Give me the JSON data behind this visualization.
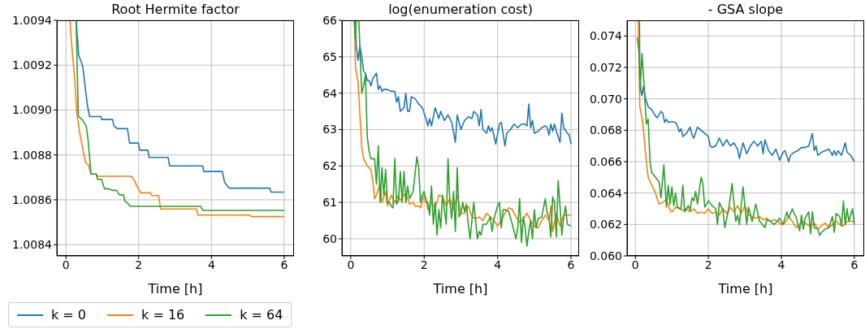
{
  "chart_data": [
    {
      "type": "line",
      "title": "Root Hermite factor",
      "xlabel": "Time [h]",
      "xlim": [
        -0.25,
        6.27
      ],
      "xticks": [
        0,
        2,
        4,
        6
      ],
      "ylim": [
        1.00835,
        1.0094
      ],
      "yticks": [
        {
          "value": 1.0084,
          "label": "1.0084"
        },
        {
          "value": 1.0086,
          "label": "1.0086"
        },
        {
          "value": 1.0088,
          "label": "1.0088"
        },
        {
          "value": 1.009,
          "label": "1.0090"
        },
        {
          "value": 1.0092,
          "label": "1.0092"
        },
        {
          "value": 1.0094,
          "label": "1.0094"
        }
      ],
      "grid": true,
      "legend": "bottom left",
      "series": [
        {
          "name": "k = 0",
          "color": "#1f77b4",
          "x": [
            0.28,
            0.35,
            0.46,
            0.59,
            0.65,
            0.96,
            0.98,
            1.28,
            1.32,
            1.41,
            1.69,
            1.75,
            1.99,
            2.03,
            2.25,
            2.29,
            2.81,
            2.85,
            3.76,
            3.79,
            4.3,
            4.36,
            4.49,
            5.6,
            5.64,
            6.0
          ],
          "values": [
            1.0094,
            1.009244,
            1.009196,
            1.009021,
            1.008971,
            1.008971,
            1.008958,
            1.008958,
            1.008929,
            1.008917,
            1.008917,
            1.008853,
            1.008853,
            1.008821,
            1.008821,
            1.008789,
            1.008789,
            1.008751,
            1.008751,
            1.008726,
            1.008726,
            1.008678,
            1.008652,
            1.008652,
            1.008634,
            1.008634
          ]
        },
        {
          "name": "k = 16",
          "color": "#ff7f0e",
          "x": [
            0.11,
            0.16,
            0.24,
            0.3,
            0.39,
            0.54,
            0.61,
            0.69,
            0.83,
            0.87,
            1.8,
            1.88,
            1.95,
            2.05,
            2.32,
            2.36,
            2.55,
            2.6,
            3.59,
            3.63,
            5.04,
            5.1,
            6.0
          ],
          "values": [
            1.0094,
            1.009286,
            1.009142,
            1.008985,
            1.008889,
            1.008765,
            1.008757,
            1.008715,
            1.008715,
            1.008705,
            1.008705,
            1.008687,
            1.008661,
            1.008631,
            1.008631,
            1.008619,
            1.008619,
            1.008559,
            1.008559,
            1.008532,
            1.008532,
            1.008525,
            1.008525
          ]
        },
        {
          "name": "k = 64",
          "color": "#2ca02c",
          "x": [
            0.28,
            0.34,
            0.46,
            0.56,
            0.61,
            0.69,
            0.83,
            0.87,
            0.98,
            1.06,
            1.17,
            1.28,
            1.39,
            1.47,
            1.58,
            1.62,
            1.69,
            1.77,
            3.7,
            3.76,
            6.0
          ],
          "values": [
            1.0094,
            1.008973,
            1.008955,
            1.008928,
            1.008865,
            1.008715,
            1.008715,
            1.008691,
            1.008691,
            1.008649,
            1.008649,
            1.008642,
            1.008642,
            1.008622,
            1.008622,
            1.008595,
            1.008586,
            1.008571,
            1.008571,
            1.008553,
            1.008553
          ]
        }
      ]
    },
    {
      "type": "line",
      "title": "log(enumeration cost)",
      "xlabel": "Time [h]",
      "xlim": [
        -0.24,
        6.22
      ],
      "xticks": [
        0,
        2,
        4,
        6
      ],
      "ylim": [
        59.53,
        66
      ],
      "yticks": [
        60,
        61,
        62,
        63,
        64,
        65,
        66
      ],
      "grid": true,
      "series": [
        {
          "color": "#1f77b4",
          "x": [
            0.12,
            0.15,
            0.2,
            0.25,
            0.3,
            0.35,
            0.4,
            0.45,
            0.5,
            0.55,
            0.6,
            0.7,
            0.75,
            0.8,
            0.85,
            0.9,
            1.0,
            1.1,
            1.2,
            1.25,
            1.3,
            1.35,
            1.45,
            1.5,
            1.55,
            1.6,
            1.65,
            1.75,
            1.85,
            1.95,
            2.05,
            2.1,
            2.15,
            2.2,
            2.3,
            2.4,
            2.45,
            2.55,
            2.65,
            2.75,
            2.85,
            2.9,
            3.0,
            3.1,
            3.2,
            3.3,
            3.35,
            3.45,
            3.5,
            3.55,
            3.6,
            3.7,
            3.75,
            3.8,
            3.85,
            3.95,
            4.05,
            4.1,
            4.2,
            4.25,
            4.35,
            4.45,
            4.55,
            4.65,
            4.75,
            4.8,
            4.85,
            4.9,
            4.95,
            5.0,
            5.1,
            5.2,
            5.3,
            5.35,
            5.4,
            5.45,
            5.5,
            5.55,
            5.6,
            5.7,
            5.75,
            5.8,
            5.9,
            5.95,
            6.0
          ],
          "values": [
            66.0,
            65.3,
            64.9,
            65.3,
            65.0,
            64.6,
            64.55,
            64.35,
            64.35,
            64.2,
            64.4,
            64.55,
            64.1,
            64.2,
            64.05,
            64.1,
            64.1,
            64.05,
            64.05,
            63.75,
            63.9,
            63.5,
            63.6,
            64.0,
            63.5,
            63.5,
            63.9,
            63.85,
            63.7,
            63.6,
            63.3,
            63.1,
            63.3,
            63.1,
            63.6,
            63.3,
            63.5,
            63.25,
            63.4,
            63.2,
            62.65,
            63.4,
            63.0,
            63.25,
            63.35,
            63.3,
            63.5,
            63.4,
            63.1,
            63.55,
            63.0,
            62.9,
            63.1,
            62.95,
            63.05,
            62.6,
            63.15,
            63.2,
            62.55,
            62.9,
            63.0,
            63.15,
            63.05,
            63.15,
            63.15,
            63.1,
            63.7,
            63.05,
            63.25,
            62.9,
            62.95,
            63.05,
            63.1,
            63.05,
            62.85,
            63.15,
            62.95,
            63.15,
            62.95,
            62.65,
            63.45,
            63.05,
            62.9,
            62.85,
            62.6
          ]
        },
        {
          "color": "#ff7f0e",
          "x": [
            0.1,
            0.13,
            0.2,
            0.3,
            0.35,
            0.45,
            0.55,
            0.6,
            0.65,
            0.7,
            0.8,
            0.85,
            0.95,
            1.0,
            1.1,
            1.2,
            1.3,
            1.35,
            1.45,
            1.5,
            1.6,
            1.7,
            1.75,
            1.85,
            1.9,
            2.0,
            2.05,
            2.1,
            2.2,
            2.3,
            2.4,
            2.5,
            2.6,
            2.7,
            2.8,
            2.9,
            3.0,
            3.1,
            3.2,
            3.3,
            3.4,
            3.5,
            3.6,
            3.7,
            3.8,
            3.9,
            4.0,
            4.1,
            4.2,
            4.3,
            4.4,
            4.5,
            4.6,
            4.7,
            4.8,
            4.9,
            5.0,
            5.1,
            5.2,
            5.3,
            5.4,
            5.45,
            5.5,
            5.6,
            5.7,
            5.8,
            5.9,
            6.0
          ],
          "values": [
            66.0,
            64.7,
            64.3,
            62.5,
            62.2,
            62.0,
            61.9,
            61.6,
            61.1,
            61.2,
            61.5,
            61.0,
            61.3,
            60.9,
            61.2,
            61.0,
            61.2,
            61.05,
            61.2,
            61.25,
            60.95,
            61.0,
            60.9,
            60.9,
            60.85,
            61.2,
            61.1,
            60.8,
            61.0,
            60.85,
            61.2,
            61.15,
            60.9,
            61.1,
            60.8,
            61.2,
            60.7,
            60.7,
            60.9,
            60.6,
            60.55,
            60.6,
            60.5,
            60.7,
            60.6,
            60.5,
            60.35,
            60.5,
            60.7,
            60.85,
            60.8,
            60.6,
            60.45,
            60.55,
            60.7,
            60.5,
            60.35,
            60.3,
            60.5,
            60.65,
            60.5,
            60.9,
            60.2,
            60.7,
            60.35,
            60.65,
            60.65,
            60.65
          ]
        },
        {
          "color": "#2ca02c",
          "x": [
            0.1,
            0.12,
            0.15,
            0.22,
            0.3,
            0.35,
            0.4,
            0.45,
            0.5,
            0.55,
            0.6,
            0.65,
            0.7,
            0.75,
            0.8,
            0.85,
            0.9,
            0.95,
            1.0,
            1.05,
            1.1,
            1.15,
            1.2,
            1.25,
            1.3,
            1.35,
            1.4,
            1.45,
            1.5,
            1.55,
            1.6,
            1.7,
            1.8,
            1.85,
            1.9,
            1.95,
            2.0,
            2.05,
            2.1,
            2.15,
            2.2,
            2.25,
            2.3,
            2.35,
            2.4,
            2.45,
            2.5,
            2.6,
            2.65,
            2.7,
            2.75,
            2.8,
            2.85,
            2.9,
            2.95,
            3.0,
            3.05,
            3.1,
            3.15,
            3.2,
            3.25,
            3.3,
            3.35,
            3.45,
            3.5,
            3.55,
            3.6,
            3.7,
            3.8,
            3.85,
            3.9,
            4.0,
            4.05,
            4.1,
            4.15,
            4.2,
            4.3,
            4.4,
            4.5,
            4.55,
            4.6,
            4.65,
            4.7,
            4.75,
            4.8,
            4.85,
            4.9,
            4.95,
            5.0,
            5.05,
            5.1,
            5.2,
            5.3,
            5.35,
            5.4,
            5.45,
            5.5,
            5.55,
            5.6,
            5.65,
            5.7,
            5.75,
            5.8,
            5.85,
            5.9,
            6.0
          ],
          "values": [
            66.0,
            65.5,
            66.0,
            66.0,
            64.0,
            64.2,
            64.5,
            62.8,
            62.4,
            62.2,
            62.2,
            62.2,
            61.5,
            62.55,
            61.0,
            61.95,
            61.2,
            61.9,
            61.0,
            61.0,
            60.9,
            60.85,
            62.2,
            60.95,
            61.05,
            61.85,
            61.0,
            61.85,
            61.0,
            61.45,
            61.1,
            61.3,
            62.25,
            61.95,
            61.0,
            61.2,
            61.3,
            61.0,
            61.0,
            60.65,
            61.45,
            60.4,
            61.0,
            60.1,
            60.8,
            60.3,
            61.2,
            60.4,
            62.2,
            61.0,
            60.55,
            61.3,
            60.2,
            61.95,
            60.6,
            60.7,
            61.0,
            60.75,
            60.95,
            60.4,
            60.0,
            60.5,
            61.0,
            60.0,
            60.2,
            60.1,
            60.4,
            60.4,
            60.6,
            60.2,
            60.55,
            60.9,
            61.0,
            60.3,
            60.8,
            60.8,
            60.75,
            60.4,
            60.0,
            60.3,
            61.1,
            59.9,
            60.6,
            60.3,
            59.8,
            60.2,
            60.5,
            60.0,
            60.8,
            60.3,
            60.55,
            60.6,
            61.1,
            60.7,
            60.6,
            60.05,
            61.15,
            61.0,
            60.05,
            61.6,
            60.9,
            60.1,
            60.6,
            60.9,
            60.4,
            60.35
          ]
        }
      ]
    },
    {
      "type": "line",
      "title": "- GSA slope",
      "xlabel": "Time [h]",
      "xlim": [
        -0.23,
        6.27
      ],
      "xticks": [
        0,
        2,
        4,
        6
      ],
      "ylim": [
        0.06,
        0.075
      ],
      "yticks": [
        {
          "value": 0.06,
          "label": "0.060"
        },
        {
          "value": 0.062,
          "label": "0.062"
        },
        {
          "value": 0.064,
          "label": "0.064"
        },
        {
          "value": 0.066,
          "label": "0.066"
        },
        {
          "value": 0.068,
          "label": "0.068"
        },
        {
          "value": 0.07,
          "label": "0.070"
        },
        {
          "value": 0.072,
          "label": "0.072"
        },
        {
          "value": 0.074,
          "label": "0.074"
        }
      ],
      "grid": true,
      "series": [
        {
          "color": "#1f77b4",
          "x": [
            0.11,
            0.12,
            0.15,
            0.18,
            0.22,
            0.28,
            0.35,
            0.45,
            0.55,
            0.6,
            0.7,
            0.75,
            0.8,
            0.85,
            0.9,
            1.0,
            1.1,
            1.15,
            1.2,
            1.25,
            1.3,
            1.4,
            1.5,
            1.55,
            1.6,
            1.7,
            1.8,
            1.9,
            2.0,
            2.05,
            2.1,
            2.2,
            2.3,
            2.4,
            2.5,
            2.6,
            2.7,
            2.8,
            2.85,
            2.95,
            3.05,
            3.15,
            3.25,
            3.35,
            3.45,
            3.5,
            3.55,
            3.65,
            3.75,
            3.85,
            3.95,
            4.05,
            4.1,
            4.2,
            4.25,
            4.35,
            4.45,
            4.55,
            4.65,
            4.75,
            4.85,
            4.9,
            4.95,
            5.0,
            5.1,
            5.2,
            5.3,
            5.4,
            5.45,
            5.5,
            5.55,
            5.65,
            5.75,
            5.8,
            5.9,
            6.0
          ],
          "values": [
            0.075,
            0.0715,
            0.0705,
            0.0702,
            0.0708,
            0.07,
            0.0695,
            0.0693,
            0.0689,
            0.0688,
            0.0692,
            0.0691,
            0.0685,
            0.0687,
            0.0685,
            0.06855,
            0.0685,
            0.0683,
            0.0679,
            0.0681,
            0.0676,
            0.0678,
            0.0682,
            0.0677,
            0.0675,
            0.0682,
            0.068,
            0.0678,
            0.0676,
            0.067,
            0.0669,
            0.067,
            0.0675,
            0.067,
            0.0674,
            0.067,
            0.0672,
            0.0668,
            0.0662,
            0.0672,
            0.0665,
            0.067,
            0.0673,
            0.067,
            0.0673,
            0.0665,
            0.0674,
            0.0667,
            0.0664,
            0.0668,
            0.0661,
            0.0666,
            0.0667,
            0.066,
            0.0664,
            0.0666,
            0.0667,
            0.0669,
            0.0669,
            0.067,
            0.0678,
            0.0667,
            0.067,
            0.0664,
            0.0666,
            0.0667,
            0.0668,
            0.0664,
            0.0667,
            0.0664,
            0.0667,
            0.0664,
            0.0672,
            0.0666,
            0.0664,
            0.066
          ]
        },
        {
          "color": "#ff7f0e",
          "x": [
            0.08,
            0.12,
            0.2,
            0.3,
            0.35,
            0.45,
            0.55,
            0.6,
            0.65,
            0.75,
            0.85,
            0.95,
            1.0,
            1.1,
            1.2,
            1.3,
            1.4,
            1.5,
            1.6,
            1.7,
            1.8,
            1.9,
            2.0,
            2.1,
            2.2,
            2.3,
            2.4,
            2.5,
            2.6,
            2.7,
            2.8,
            2.9,
            3.0,
            3.1,
            3.2,
            3.3,
            3.4,
            3.5,
            3.6,
            3.7,
            3.8,
            3.9,
            4.0,
            4.1,
            4.2,
            4.3,
            4.4,
            4.5,
            4.6,
            4.7,
            4.8,
            4.9,
            5.0,
            5.1,
            5.2,
            5.3,
            5.4,
            5.5,
            5.6,
            5.7,
            5.8,
            5.9,
            6.0
          ],
          "values": [
            0.075,
            0.0695,
            0.0685,
            0.066,
            0.065,
            0.0645,
            0.064,
            0.0636,
            0.0633,
            0.0634,
            0.0636,
            0.0629,
            0.0628,
            0.0631,
            0.063,
            0.0629,
            0.063,
            0.0628,
            0.063,
            0.0627,
            0.0628,
            0.0627,
            0.063,
            0.0627,
            0.0628,
            0.0626,
            0.063,
            0.0627,
            0.0631,
            0.0628,
            0.0632,
            0.0627,
            0.0632,
            0.0626,
            0.0625,
            0.0624,
            0.0625,
            0.0623,
            0.0624,
            0.0622,
            0.0623,
            0.0622,
            0.062,
            0.0621,
            0.0625,
            0.0622,
            0.0618,
            0.062,
            0.0622,
            0.062,
            0.0619,
            0.0621,
            0.0617,
            0.0619,
            0.0621,
            0.0618,
            0.062,
            0.0622,
            0.062,
            0.0619,
            0.0622,
            0.0622,
            0.0622
          ]
        },
        {
          "color": "#2ca02c",
          "x": [
            0.05,
            0.1,
            0.13,
            0.18,
            0.22,
            0.3,
            0.35,
            0.4,
            0.45,
            0.55,
            0.65,
            0.7,
            0.78,
            0.85,
            0.9,
            0.95,
            1.0,
            1.05,
            1.1,
            1.15,
            1.25,
            1.3,
            1.35,
            1.45,
            1.5,
            1.55,
            1.6,
            1.65,
            1.7,
            1.8,
            1.85,
            1.9,
            2.0,
            2.1,
            2.2,
            2.25,
            2.3,
            2.4,
            2.45,
            2.55,
            2.65,
            2.75,
            2.8,
            2.85,
            2.95,
            3.05,
            3.1,
            3.2,
            3.3,
            3.4,
            3.45,
            3.55,
            3.6,
            3.7,
            3.8,
            3.85,
            3.95,
            4.05,
            4.15,
            4.2,
            4.3,
            4.35,
            4.4,
            4.5,
            4.55,
            4.6,
            4.65,
            4.75,
            4.8,
            4.85,
            4.9,
            5.0,
            5.05,
            5.1,
            5.2,
            5.3,
            5.4,
            5.45,
            5.5,
            5.6,
            5.65,
            5.7,
            5.75,
            5.8,
            5.85,
            5.95,
            6.0
          ],
          "values": [
            0.0739,
            0.073,
            0.0706,
            0.0729,
            0.0715,
            0.0684,
            0.0687,
            0.066,
            0.0653,
            0.065,
            0.0647,
            0.0637,
            0.0658,
            0.0631,
            0.0645,
            0.0633,
            0.0644,
            0.0632,
            0.064,
            0.0631,
            0.063,
            0.0645,
            0.0628,
            0.0632,
            0.0629,
            0.0637,
            0.0635,
            0.0641,
            0.0633,
            0.065,
            0.0646,
            0.0631,
            0.0635,
            0.0632,
            0.063,
            0.062,
            0.0634,
            0.0629,
            0.0618,
            0.0629,
            0.0646,
            0.0622,
            0.0626,
            0.062,
            0.0644,
            0.062,
            0.0631,
            0.0622,
            0.0633,
            0.0622,
            0.0621,
            0.0618,
            0.0623,
            0.0622,
            0.062,
            0.0621,
            0.0624,
            0.062,
            0.0628,
            0.0624,
            0.063,
            0.0627,
            0.0625,
            0.0616,
            0.0626,
            0.0617,
            0.0624,
            0.0628,
            0.0614,
            0.0628,
            0.0618,
            0.0617,
            0.0613,
            0.0615,
            0.0617,
            0.0618,
            0.0625,
            0.0615,
            0.0627,
            0.0625,
            0.0619,
            0.0635,
            0.062,
            0.063,
            0.0622,
            0.063,
            0.062
          ]
        }
      ]
    }
  ]
}
